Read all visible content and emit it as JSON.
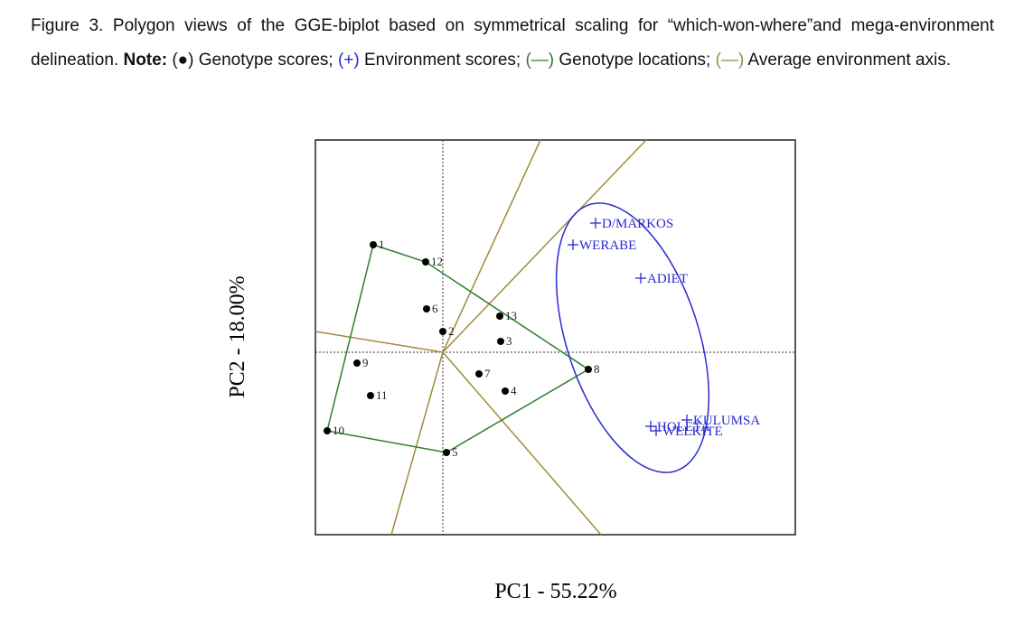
{
  "caption": {
    "label": "Figure 3.",
    "text": "Polygon views of the GGE-biplot based on symmetrical scaling for “which-won-where”and mega-environment delineation.",
    "note": "Note:",
    "legend": [
      {
        "symbol": "(●)",
        "text": "Genotype scores;"
      },
      {
        "symbol": "(+)",
        "text": "Environment scores;"
      },
      {
        "symbol": "(—)",
        "text": "Genotype locations;"
      },
      {
        "symbol": "(—)",
        "text": "Average environment axis."
      }
    ]
  },
  "figure": {
    "x_label": "PC1 - 55.22%",
    "y_label": "PC2 - 18.00%",
    "genotypes": [
      "1",
      "2",
      "3",
      "4",
      "5",
      "6",
      "7",
      "8",
      "9",
      "10",
      "11",
      "12",
      "13"
    ],
    "environments": [
      "D/MARKOS",
      "WERABE",
      "ADIET",
      "KULUMSA",
      "HOLETA",
      "WELKITE"
    ]
  }
}
